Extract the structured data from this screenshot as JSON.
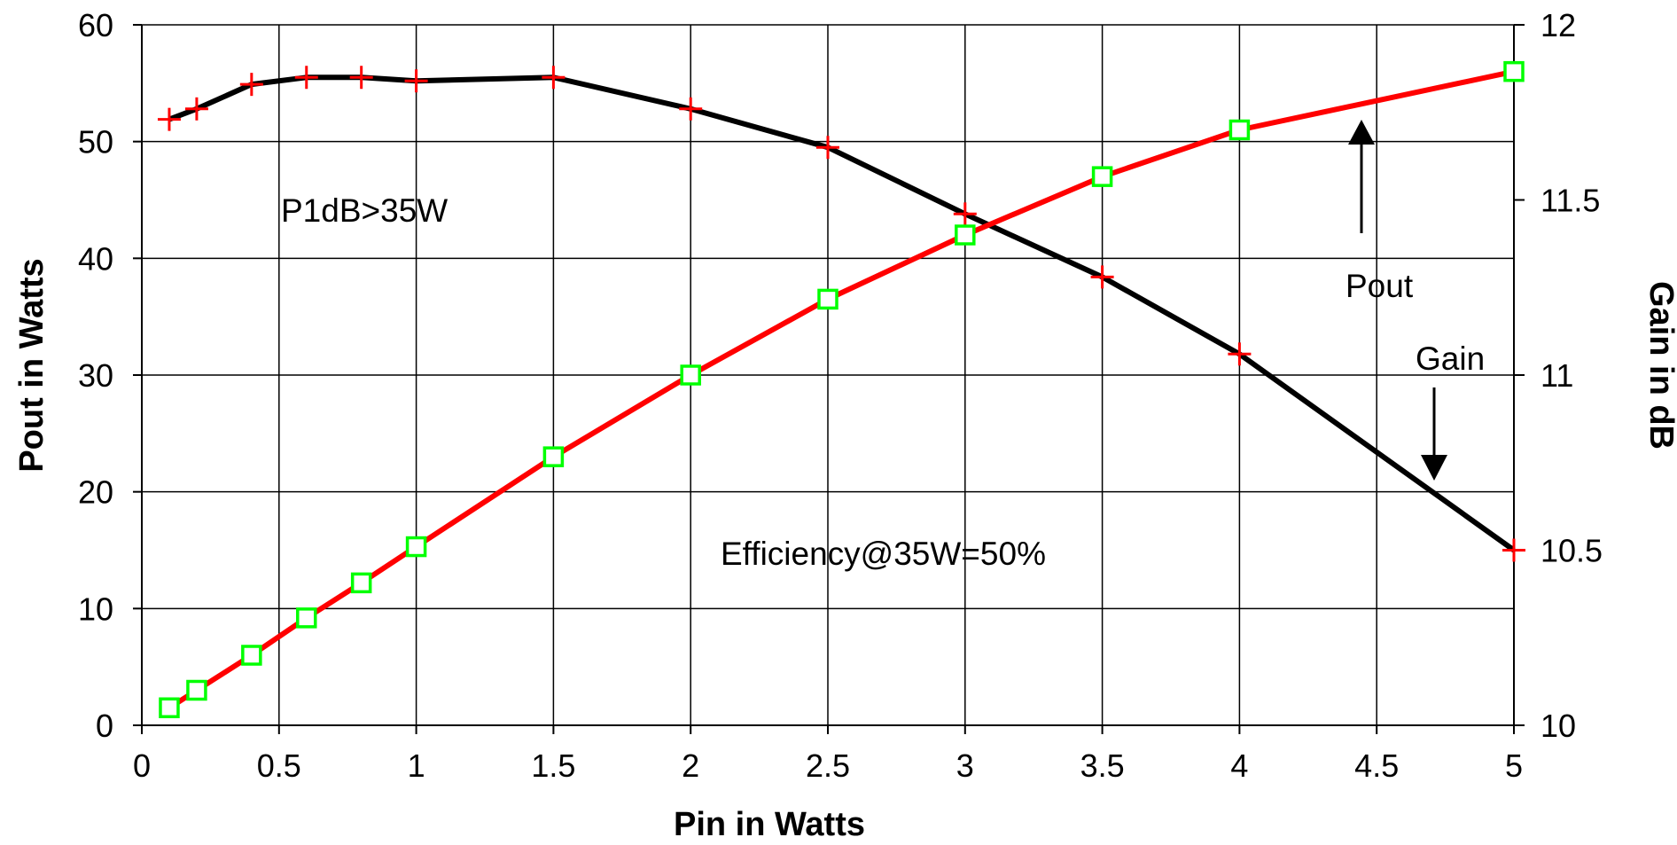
{
  "chart_data": {
    "type": "line",
    "title": "",
    "xlabel": "Pin in Watts",
    "ylabel": "Pout in Watts",
    "y2label": "Gain in dB",
    "xlim": [
      0,
      5
    ],
    "ylim": [
      0,
      60
    ],
    "y2lim": [
      10,
      12
    ],
    "x_ticks": [
      "0",
      "0.5",
      "1",
      "1.5",
      "2",
      "2.5",
      "3",
      "3.5",
      "4",
      "4.5",
      "5"
    ],
    "y_ticks": [
      "0",
      "10",
      "20",
      "30",
      "40",
      "50",
      "60"
    ],
    "y2_ticks": [
      "10",
      "10.5",
      "11",
      "11.5",
      "12"
    ],
    "grid": true,
    "series": [
      {
        "axis": "left",
        "color": "#ff0000",
        "marker": "square",
        "marker_color": "#00ff00",
        "x": [
          0.1,
          0.2,
          0.4,
          0.6,
          0.8,
          1,
          1.5,
          2,
          2.5,
          3,
          3.5,
          4,
          5
        ],
        "values": [
          1.5,
          3,
          6,
          9.2,
          12.2,
          15.3,
          23,
          30,
          36.5,
          42,
          47,
          51,
          56
        ]
      },
      {
        "axis": "right",
        "color": "#000000",
        "marker": "plus",
        "marker_color": "#ff0000",
        "x": [
          0.1,
          0.2,
          0.4,
          0.6,
          0.8,
          1,
          1.5,
          2,
          2.5,
          3,
          3.5,
          4,
          5
        ],
        "values": [
          11.73,
          11.76,
          11.83,
          11.85,
          11.85,
          11.84,
          11.85,
          11.76,
          11.65,
          11.46,
          11.28,
          11.06,
          10.5
        ]
      }
    ],
    "annotations": {
      "p1db": "P1dB>35W",
      "efficiency": "Efficiency@35W=50%",
      "pout": "Pout",
      "gain": "Gain"
    }
  }
}
